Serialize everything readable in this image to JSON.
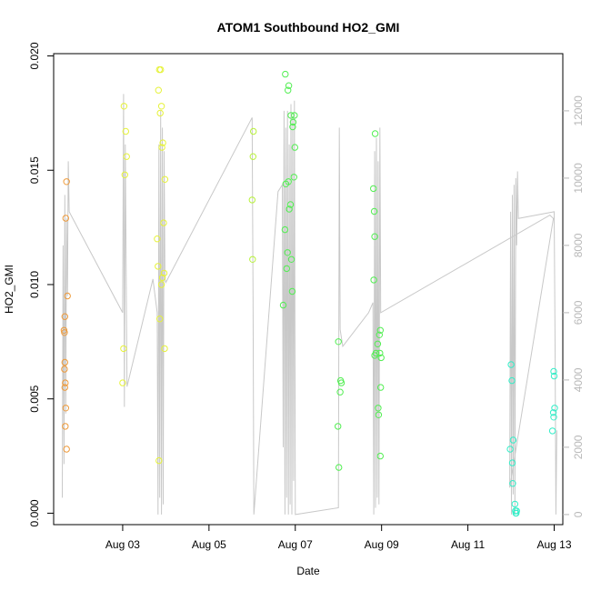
{
  "chart_data": {
    "type": "scatter",
    "title": "ATOM1 Southbound HO2_GMI",
    "xlabel": "Date",
    "ylabel": "HO2_GMI",
    "x_unit": "days since Aug 01",
    "xlim": [
      1.4,
      13.2
    ],
    "ylim": [
      -0.0005,
      0.0201
    ],
    "ylim_right": [
      -300,
      13700
    ],
    "x_ticks": [
      {
        "value": 3,
        "label": "Aug 03"
      },
      {
        "value": 5,
        "label": "Aug 05"
      },
      {
        "value": 7,
        "label": "Aug 07"
      },
      {
        "value": 9,
        "label": "Aug 09"
      },
      {
        "value": 11,
        "label": "Aug 11"
      },
      {
        "value": 13,
        "label": "Aug 13"
      }
    ],
    "y_ticks": [
      {
        "value": 0.0,
        "label": "0.000"
      },
      {
        "value": 0.005,
        "label": "0.005"
      },
      {
        "value": 0.01,
        "label": "0.010"
      },
      {
        "value": 0.015,
        "label": "0.015"
      },
      {
        "value": 0.02,
        "label": "0.020"
      }
    ],
    "y_right_ticks": [
      {
        "value": 0,
        "label": "0"
      },
      {
        "value": 2000,
        "label": "2000"
      },
      {
        "value": 4000,
        "label": "4000"
      },
      {
        "value": 6000,
        "label": "6000"
      },
      {
        "value": 8000,
        "label": "8000"
      },
      {
        "value": 10000,
        "label": "10000"
      },
      {
        "value": 12000,
        "label": "12000"
      }
    ],
    "grid": false,
    "colors": {
      "orange": "#ee9a3a",
      "yellow": "#e6f23a",
      "yellowgreen": "#b8f23a",
      "green": "#52ee52",
      "cyan": "#33eec8",
      "line": "#c8c8c8"
    },
    "series": [
      {
        "color": "orange",
        "points": [
          [
            1.7,
            0.0145
          ],
          [
            1.68,
            0.0129
          ],
          [
            1.72,
            0.0095
          ],
          [
            1.66,
            0.0086
          ],
          [
            1.64,
            0.008
          ],
          [
            1.65,
            0.0079
          ],
          [
            1.66,
            0.0066
          ],
          [
            1.65,
            0.0063
          ],
          [
            1.67,
            0.0057
          ],
          [
            1.66,
            0.0055
          ],
          [
            1.68,
            0.0046
          ],
          [
            1.67,
            0.0038
          ],
          [
            1.7,
            0.0028
          ]
        ]
      },
      {
        "color": "yellow",
        "points": [
          [
            3.03,
            0.0178
          ],
          [
            3.07,
            0.0167
          ],
          [
            3.09,
            0.0156
          ],
          [
            3.05,
            0.0148
          ],
          [
            3.02,
            0.0072
          ],
          [
            3.0,
            0.0057
          ],
          [
            3.85,
            0.0194
          ],
          [
            3.88,
            0.0194
          ],
          [
            3.83,
            0.0185
          ],
          [
            3.9,
            0.0178
          ],
          [
            3.87,
            0.0175
          ],
          [
            3.93,
            0.0162
          ],
          [
            3.91,
            0.016
          ],
          [
            3.98,
            0.0146
          ],
          [
            3.95,
            0.0127
          ],
          [
            3.8,
            0.012
          ],
          [
            3.82,
            0.0108
          ],
          [
            3.96,
            0.0105
          ],
          [
            3.92,
            0.0103
          ],
          [
            3.9,
            0.01
          ],
          [
            3.86,
            0.0085
          ],
          [
            3.97,
            0.0072
          ],
          [
            3.84,
            0.0023
          ]
        ]
      },
      {
        "color": "yellowgreen",
        "points": [
          [
            6.03,
            0.0167
          ],
          [
            6.02,
            0.0156
          ],
          [
            6.0,
            0.0137
          ],
          [
            6.01,
            0.0111
          ]
        ]
      },
      {
        "color": "green",
        "points": [
          [
            6.77,
            0.0192
          ],
          [
            6.85,
            0.0187
          ],
          [
            6.83,
            0.0185
          ],
          [
            6.9,
            0.0174
          ],
          [
            6.98,
            0.0174
          ],
          [
            6.95,
            0.0171
          ],
          [
            6.94,
            0.0169
          ],
          [
            6.99,
            0.016
          ],
          [
            6.97,
            0.0147
          ],
          [
            6.84,
            0.0145
          ],
          [
            6.78,
            0.0144
          ],
          [
            6.89,
            0.0135
          ],
          [
            6.86,
            0.0133
          ],
          [
            6.76,
            0.0124
          ],
          [
            6.82,
            0.0114
          ],
          [
            6.91,
            0.0111
          ],
          [
            6.8,
            0.0107
          ],
          [
            6.93,
            0.0097
          ],
          [
            6.72,
            0.0091
          ],
          [
            8.0,
            0.0075
          ],
          [
            8.05,
            0.0058
          ],
          [
            8.07,
            0.0057
          ],
          [
            8.04,
            0.0053
          ],
          [
            7.99,
            0.0038
          ],
          [
            8.01,
            0.002
          ],
          [
            8.85,
            0.0166
          ],
          [
            8.81,
            0.0142
          ],
          [
            8.83,
            0.0132
          ],
          [
            8.84,
            0.0121
          ],
          [
            8.82,
            0.0102
          ],
          [
            8.97,
            0.008
          ],
          [
            8.95,
            0.0078
          ],
          [
            8.91,
            0.0074
          ],
          [
            8.87,
            0.007
          ],
          [
            8.96,
            0.007
          ],
          [
            8.84,
            0.0069
          ],
          [
            8.99,
            0.0068
          ],
          [
            8.98,
            0.0055
          ],
          [
            8.92,
            0.0046
          ],
          [
            8.93,
            0.0043
          ],
          [
            8.97,
            0.0025
          ]
        ]
      },
      {
        "color": "cyan",
        "points": [
          [
            12.0,
            0.0065
          ],
          [
            12.02,
            0.0058
          ],
          [
            12.05,
            0.0032
          ],
          [
            11.98,
            0.0028
          ],
          [
            12.03,
            0.0022
          ],
          [
            12.04,
            0.0013
          ],
          [
            12.09,
            0.0004
          ],
          [
            12.1,
            0.0001
          ],
          [
            12.13,
            0.0001
          ],
          [
            12.12,
            0.0
          ],
          [
            12.11,
            0.0
          ],
          [
            12.99,
            0.0062
          ],
          [
            13.0,
            0.006
          ],
          [
            13.01,
            0.0046
          ],
          [
            12.98,
            0.0044
          ],
          [
            12.99,
            0.0042
          ],
          [
            12.96,
            0.0036
          ]
        ]
      }
    ],
    "altitude_line": [
      [
        1.6,
        500
      ],
      [
        1.62,
        8000
      ],
      [
        1.64,
        1500
      ],
      [
        1.66,
        9500
      ],
      [
        1.68,
        3000
      ],
      [
        1.7,
        8800
      ],
      [
        1.72,
        6500
      ],
      [
        1.74,
        10500
      ],
      [
        1.76,
        9000
      ],
      [
        3.0,
        6000
      ],
      [
        3.02,
        12500
      ],
      [
        3.04,
        3200
      ],
      [
        3.06,
        11000
      ],
      [
        3.08,
        7500
      ],
      [
        3.1,
        3800
      ],
      [
        3.7,
        7000
      ],
      [
        3.8,
        6000
      ],
      [
        3.82,
        0
      ],
      [
        3.84,
        11000
      ],
      [
        3.86,
        500
      ],
      [
        3.88,
        12000
      ],
      [
        3.9,
        0
      ],
      [
        3.92,
        11500
      ],
      [
        3.94,
        300
      ],
      [
        3.96,
        10800
      ],
      [
        3.98,
        7000
      ],
      [
        4.0,
        6900
      ],
      [
        6.0,
        11800
      ],
      [
        6.02,
        6500
      ],
      [
        6.04,
        0
      ],
      [
        6.6,
        9600
      ],
      [
        6.7,
        9800
      ],
      [
        6.72,
        2000
      ],
      [
        6.74,
        12000
      ],
      [
        6.76,
        0
      ],
      [
        6.78,
        11500
      ],
      [
        6.8,
        500
      ],
      [
        6.82,
        12000
      ],
      [
        6.84,
        0
      ],
      [
        6.86,
        11000
      ],
      [
        6.88,
        300
      ],
      [
        6.9,
        12200
      ],
      [
        6.92,
        0
      ],
      [
        6.94,
        11800
      ],
      [
        6.96,
        1000
      ],
      [
        6.98,
        12300
      ],
      [
        7.0,
        0
      ],
      [
        8.0,
        200
      ],
      [
        8.02,
        11500
      ],
      [
        8.04,
        5500
      ],
      [
        8.1,
        5000
      ],
      [
        8.7,
        6000
      ],
      [
        8.8,
        6300
      ],
      [
        8.82,
        0
      ],
      [
        8.84,
        10800
      ],
      [
        8.86,
        200
      ],
      [
        8.88,
        11200
      ],
      [
        8.9,
        500
      ],
      [
        8.92,
        10500
      ],
      [
        8.94,
        300
      ],
      [
        8.96,
        11500
      ],
      [
        8.98,
        6000
      ],
      [
        12.9,
        8900
      ],
      [
        12.98,
        8800
      ],
      [
        11.97,
        800
      ],
      [
        11.99,
        9000
      ],
      [
        12.01,
        0
      ],
      [
        12.03,
        9500
      ],
      [
        12.05,
        600
      ],
      [
        12.07,
        9800
      ],
      [
        12.09,
        0
      ],
      [
        12.11,
        10000
      ],
      [
        12.13,
        8000
      ],
      [
        12.15,
        10200
      ],
      [
        12.17,
        8800
      ],
      [
        13.0,
        9000
      ],
      [
        13.02,
        5000
      ],
      [
        13.04,
        0
      ],
      [
        13.06,
        2500
      ]
    ]
  }
}
